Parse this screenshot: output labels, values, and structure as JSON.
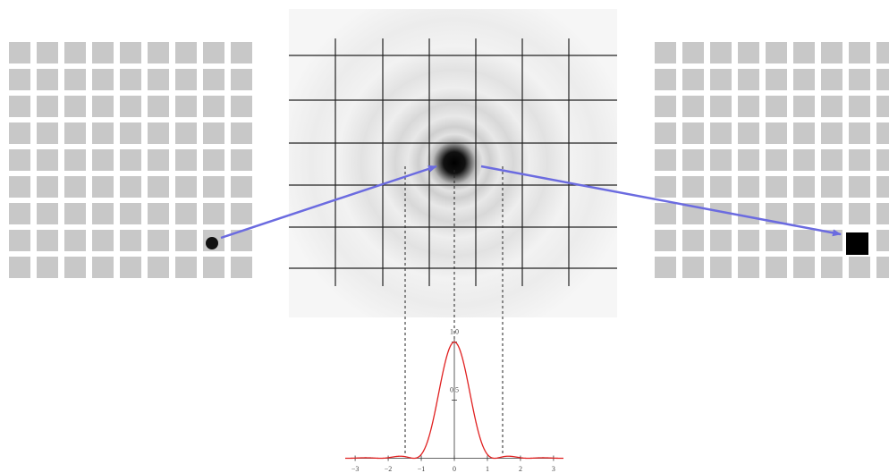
{
  "profile": {
    "xlim": [
      -3.3,
      3.3
    ],
    "ylim": [
      -0.05,
      1.05
    ],
    "xticks": [
      {
        "value": -3,
        "label": "−3"
      },
      {
        "value": -2,
        "label": "−2"
      },
      {
        "value": -1,
        "label": "−1"
      },
      0,
      1,
      2,
      3
    ],
    "yticks": [
      {
        "value": 0.5,
        "label": "0.5"
      },
      {
        "value": 1,
        "label": "1.0"
      }
    ]
  }
}
